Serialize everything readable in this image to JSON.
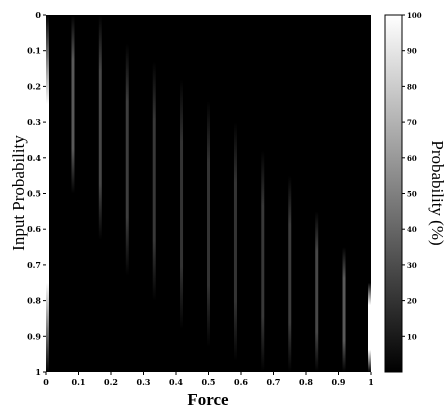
{
  "chart_data": {
    "type": "heatmap",
    "xlabel": "Force",
    "ylabel": "Input Probability",
    "xlim": [
      0,
      1
    ],
    "ylim": [
      0,
      1
    ],
    "y_inverted": true,
    "x_ticks": [
      "0",
      "0.1",
      "0.2",
      "0.3",
      "0.4",
      "0.5",
      "0.6",
      "0.7",
      "0.8",
      "0.9",
      "1"
    ],
    "y_ticks": [
      "0",
      "0.1",
      "0.2",
      "0.3",
      "0.4",
      "0.5",
      "0.6",
      "0.7",
      "0.8",
      "0.9",
      "1"
    ],
    "colorbar": {
      "label": "Probability (%)",
      "range": [
        0,
        100
      ],
      "ticks": [
        "10",
        "20",
        "30",
        "40",
        "50",
        "60",
        "70",
        "80",
        "90",
        "100"
      ],
      "colormap": "gray"
    },
    "background_value": 0,
    "ridges": [
      {
        "force": 0.0,
        "input_probability": [
          0.0,
          1.0
        ],
        "peak": 100
      },
      {
        "force": 0.083,
        "input_probability": [
          0.0,
          0.5
        ],
        "peak": 35
      },
      {
        "force": 0.167,
        "input_probability": [
          0.0,
          0.63
        ],
        "peak": 28
      },
      {
        "force": 0.25,
        "input_probability": [
          0.08,
          0.73
        ],
        "peak": 24
      },
      {
        "force": 0.333,
        "input_probability": [
          0.13,
          0.8
        ],
        "peak": 22
      },
      {
        "force": 0.417,
        "input_probability": [
          0.18,
          0.88
        ],
        "peak": 20
      },
      {
        "force": 0.5,
        "input_probability": [
          0.24,
          0.93
        ],
        "peak": 20
      },
      {
        "force": 0.583,
        "input_probability": [
          0.3,
          0.97
        ],
        "peak": 20
      },
      {
        "force": 0.667,
        "input_probability": [
          0.38,
          1.0
        ],
        "peak": 22
      },
      {
        "force": 0.75,
        "input_probability": [
          0.45,
          1.0
        ],
        "peak": 24
      },
      {
        "force": 0.833,
        "input_probability": [
          0.55,
          1.0
        ],
        "peak": 28
      },
      {
        "force": 0.917,
        "input_probability": [
          0.65,
          1.0
        ],
        "peak": 35
      },
      {
        "force": 1.0,
        "input_probability": [
          0.75,
          1.0
        ],
        "peak": 100
      }
    ]
  }
}
